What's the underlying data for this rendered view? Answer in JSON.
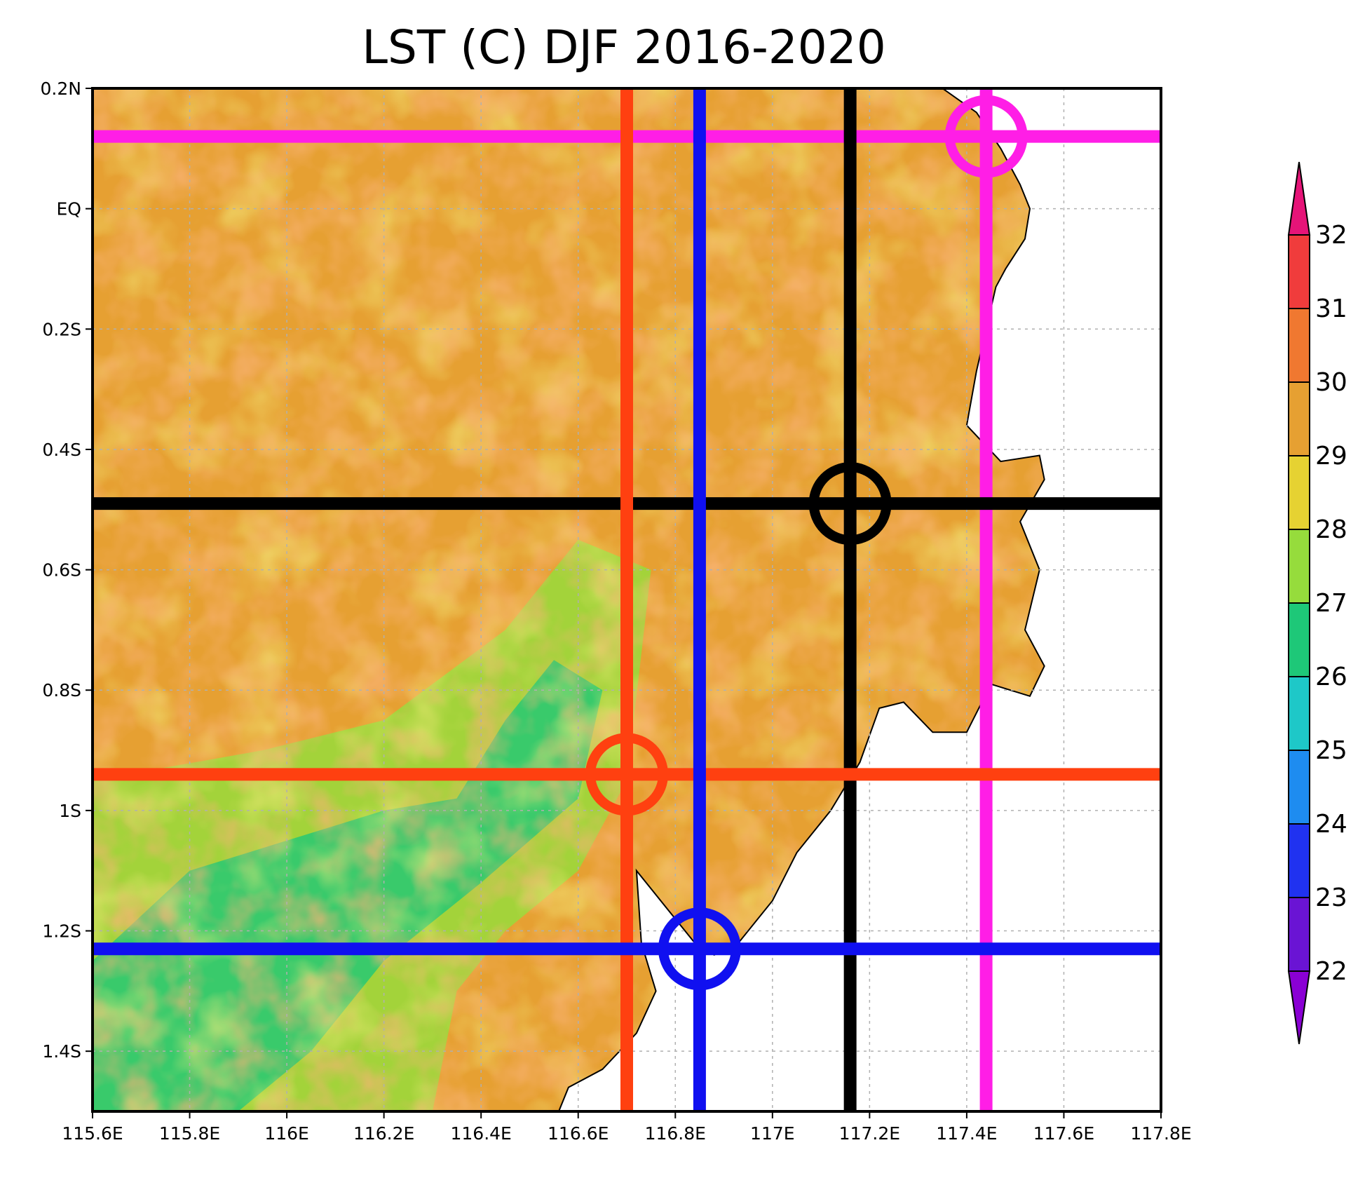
{
  "title": "LST (C) DJF 2016-2020",
  "x_ticks": [
    "115.6E",
    "115.8E",
    "116E",
    "116.2E",
    "116.4E",
    "116.6E",
    "116.8E",
    "117E",
    "117.2E",
    "117.4E",
    "117.6E",
    "117.8E"
  ],
  "y_ticks": [
    "0.2N",
    "EQ",
    "0.2S",
    "0.4S",
    "0.6S",
    "0.8S",
    "1S",
    "1.2S",
    "1.4S"
  ],
  "colorbar": {
    "labels": [
      "22",
      "23",
      "24",
      "25",
      "26",
      "27",
      "28",
      "29",
      "30",
      "31",
      "32"
    ],
    "colors": [
      "#8a00d4",
      "#6a14d4",
      "#2032f0",
      "#1e8cf0",
      "#1ec8c8",
      "#1ec878",
      "#96dc3c",
      "#e6d232",
      "#e6a032",
      "#f07830",
      "#f03c3c",
      "#e61478"
    ]
  },
  "map_palette": {
    "land_warm": "#e6a032",
    "land_mid": "#e6d232",
    "land_cool": "#96dc3c",
    "land_cold": "#1ec878",
    "hot": "#f07830",
    "hottest": "#f03c3c",
    "sea": "#ffffff"
  },
  "markers": [
    {
      "name": "magenta",
      "color": "#ff1ee6",
      "lon": 117.44,
      "lat": 0.12
    },
    {
      "name": "black",
      "color": "#000000",
      "lon": 117.16,
      "lat": -0.49
    },
    {
      "name": "orange",
      "color": "#ff4010",
      "lon": 116.7,
      "lat": -0.94
    },
    {
      "name": "blue",
      "color": "#1010f0",
      "lon": 116.85,
      "lat": -1.23
    }
  ]
}
